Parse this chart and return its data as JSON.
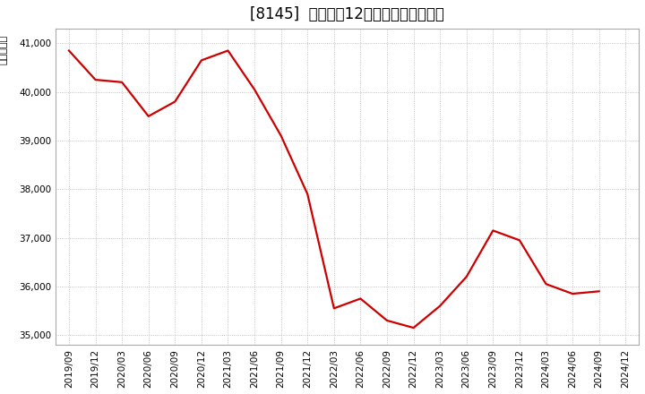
{
  "title": "[8145]  売上高の12か月移動合計の推移",
  "ylabel": "（百万円）",
  "line_color": "#cc0000",
  "background_color": "#ffffff",
  "grid_color": "#b0b0b0",
  "dates": [
    "2019/09",
    "2019/12",
    "2020/03",
    "2020/06",
    "2020/09",
    "2020/12",
    "2021/03",
    "2021/06",
    "2021/09",
    "2021/12",
    "2022/03",
    "2022/06",
    "2022/09",
    "2022/12",
    "2023/03",
    "2023/06",
    "2023/09",
    "2023/12",
    "2024/03",
    "2024/06",
    "2024/09",
    "2024/12"
  ],
  "values": [
    40850,
    40250,
    40200,
    39500,
    39800,
    40650,
    40850,
    40050,
    39100,
    37900,
    35550,
    35750,
    35300,
    35150,
    35600,
    36200,
    37150,
    36950,
    36050,
    35850,
    35900,
    null
  ],
  "ylim": [
    34800,
    41300
  ],
  "yticks": [
    35000,
    36000,
    37000,
    38000,
    39000,
    40000,
    41000
  ],
  "ytick_labels": [
    "35,000",
    "36,000",
    "37,000",
    "38,000",
    "39,000",
    "40,000",
    "41,000"
  ],
  "line_width": 1.6,
  "title_fontsize": 12,
  "tick_fontsize": 7.5,
  "ylabel_fontsize": 8
}
